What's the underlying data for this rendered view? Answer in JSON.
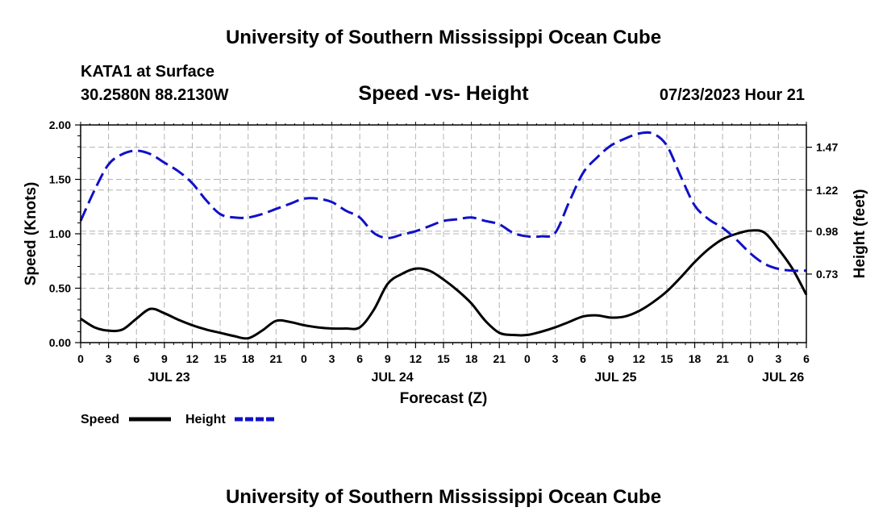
{
  "header": {
    "title": "University of Southern Mississippi Ocean Cube",
    "station": "KATA1 at Surface",
    "coords": "30.2580N  88.2130W",
    "datetime": "07/23/2023 Hour 21",
    "footer_title": "University of Southern Mississippi Ocean Cube"
  },
  "chart_data": {
    "type": "line",
    "title": "Speed -vs- Height",
    "xlabel": "Forecast (Z)",
    "ylabel": "Speed (Knots)",
    "y2label": "Height (feet)",
    "x_unit": "hours since JUL 23 00Z",
    "xlim": [
      0,
      78
    ],
    "ylim": [
      0,
      2.0
    ],
    "y2lim": [
      0.33,
      1.6
    ],
    "grid": true,
    "x_ticks": [
      0,
      3,
      6,
      9,
      12,
      15,
      18,
      21,
      24,
      27,
      30,
      33,
      36,
      39,
      42,
      45,
      48,
      51,
      54,
      57,
      60,
      63,
      66,
      69,
      72,
      75,
      78
    ],
    "x_tick_labels": [
      "0",
      "3",
      "6",
      "9",
      "12",
      "15",
      "18",
      "21",
      "0",
      "3",
      "6",
      "9",
      "12",
      "15",
      "18",
      "21",
      "0",
      "3",
      "6",
      "9",
      "12",
      "15",
      "18",
      "21",
      "0",
      "3",
      "6"
    ],
    "date_labels": [
      {
        "x": 9.5,
        "label": "JUL 23"
      },
      {
        "x": 33.5,
        "label": "JUL 24"
      },
      {
        "x": 57.5,
        "label": "JUL 25"
      },
      {
        "x": 75.5,
        "label": "JUL 26"
      }
    ],
    "y_ticks": [
      0.0,
      0.5,
      1.0,
      1.5,
      2.0
    ],
    "y_tick_labels": [
      "0.00",
      "0.50",
      "1.00",
      "1.50",
      "2.00"
    ],
    "y2_ticks": [
      0.73,
      0.98,
      1.22,
      1.47
    ],
    "y2_tick_labels": [
      "0.73",
      "0.98",
      "1.22",
      "1.47"
    ],
    "legend": [
      {
        "name": "Speed",
        "color": "#000000",
        "style": "solid"
      },
      {
        "name": "Height",
        "color": "#1010c8",
        "style": "dashed"
      }
    ],
    "series": [
      {
        "name": "Speed",
        "axis": "left",
        "color": "#000000",
        "x": [
          0,
          1.5,
          3,
          4.5,
          6,
          7.5,
          9,
          10.5,
          12,
          13.5,
          15,
          16.5,
          18,
          19.5,
          21,
          22.5,
          24,
          25.5,
          27,
          28.5,
          30,
          31.5,
          33,
          34.5,
          36,
          37.5,
          39,
          40.5,
          42,
          43.5,
          45,
          46.5,
          48,
          49.5,
          51,
          52.5,
          54,
          55.5,
          57,
          58.5,
          60,
          61.5,
          63,
          64.5,
          66,
          67.5,
          69,
          70.5,
          72,
          73.5,
          75,
          76.5,
          78
        ],
        "values": [
          0.22,
          0.14,
          0.11,
          0.12,
          0.22,
          0.31,
          0.27,
          0.21,
          0.16,
          0.12,
          0.09,
          0.06,
          0.04,
          0.11,
          0.2,
          0.19,
          0.16,
          0.14,
          0.13,
          0.13,
          0.14,
          0.3,
          0.54,
          0.63,
          0.68,
          0.66,
          0.58,
          0.48,
          0.36,
          0.2,
          0.09,
          0.07,
          0.07,
          0.1,
          0.14,
          0.19,
          0.24,
          0.25,
          0.23,
          0.24,
          0.29,
          0.37,
          0.47,
          0.6,
          0.74,
          0.86,
          0.95,
          1.0,
          1.03,
          1.01,
          0.86,
          0.68,
          0.44
        ]
      },
      {
        "name": "Height",
        "axis": "right",
        "color": "#1010c8",
        "x": [
          0,
          1.5,
          3,
          4.5,
          6,
          7.5,
          9,
          10.5,
          12,
          13.5,
          15,
          16.5,
          18,
          19.5,
          21,
          22.5,
          24,
          25.5,
          27,
          28.5,
          30,
          31.5,
          33,
          34.5,
          36,
          37.5,
          39,
          40.5,
          42,
          43.5,
          45,
          46.5,
          48,
          49.5,
          51,
          52.5,
          54,
          55.5,
          57,
          58.5,
          60,
          61.5,
          63,
          64.5,
          66,
          67.5,
          69,
          70.5,
          72,
          73.5,
          75,
          76.5,
          78
        ],
        "values": [
          1.04,
          1.22,
          1.37,
          1.43,
          1.45,
          1.43,
          1.38,
          1.33,
          1.26,
          1.16,
          1.08,
          1.06,
          1.06,
          1.08,
          1.11,
          1.14,
          1.17,
          1.17,
          1.15,
          1.1,
          1.06,
          0.97,
          0.94,
          0.96,
          0.98,
          1.01,
          1.04,
          1.05,
          1.06,
          1.04,
          1.02,
          0.97,
          0.95,
          0.95,
          0.97,
          1.15,
          1.32,
          1.41,
          1.48,
          1.52,
          1.55,
          1.55,
          1.48,
          1.3,
          1.13,
          1.05,
          1.0,
          0.93,
          0.85,
          0.79,
          0.76,
          0.75,
          0.75
        ]
      }
    ]
  }
}
